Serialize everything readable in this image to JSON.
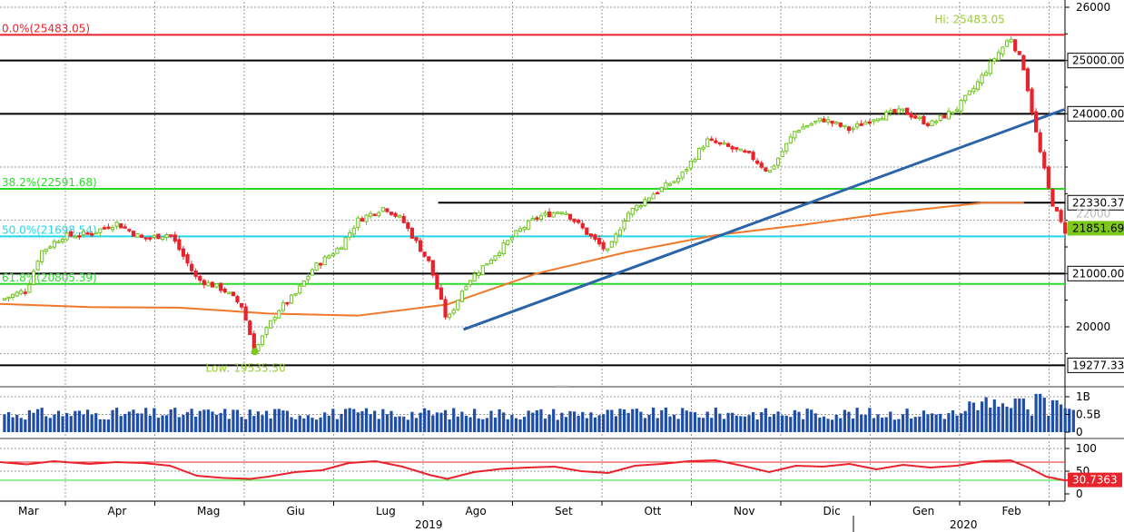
{
  "chart_data": [
    {
      "type": "candlestick",
      "title": "",
      "price_axis": {
        "ticks": [
          "26000",
          "20000"
        ],
        "ylim": [
          18950,
          26150
        ],
        "partial_tick": "22000"
      },
      "levels": [
        {
          "name": "fib-0",
          "value": 25483.05,
          "label": "0.0%(25483.05)",
          "color": "#e8232b",
          "label_side": "left"
        },
        {
          "name": "res-25000",
          "value": 25000,
          "label": "25000.00",
          "color": "#000000",
          "label_side": "right"
        },
        {
          "name": "res-24000",
          "value": 24000,
          "label": "24000.00",
          "color": "#000000",
          "label_side": "right"
        },
        {
          "name": "fib-382",
          "value": 22591.68,
          "label": "38.2%(22591.68)",
          "color": "#2adc2a",
          "label_side": "left"
        },
        {
          "name": "res-22330",
          "value": 22330.37,
          "label": "22330.37",
          "color": "#000000",
          "label_side": "right",
          "x_start_month": 4.9
        },
        {
          "name": "fib-50",
          "value": 21698.54,
          "label": "50.0%(21698.54)",
          "color": "#22d8e8",
          "label_side": "left"
        },
        {
          "name": "sup-21000",
          "value": 21000,
          "label": "21000.00",
          "color": "#000000",
          "label_side": "right"
        },
        {
          "name": "fib-618",
          "value": 20805.39,
          "label": "61.8%(20805.39)",
          "color": "#2adc2a",
          "label_side": "left"
        },
        {
          "name": "sup-19277",
          "value": 19277.33,
          "label": "19277.33",
          "color": "#000000",
          "label_side": "right"
        }
      ],
      "last_price": {
        "value": 21851.69,
        "label": "21851.69",
        "color": "#7ec81e"
      },
      "annotations": [
        {
          "text": "Hi: 25483.05",
          "value": 25483.05
        },
        {
          "text": "Low: 19535.50",
          "value": 19535.5
        }
      ],
      "trendline": {
        "start": [
          5.0,
          19950
        ],
        "end": [
          11.9,
          24080
        ],
        "color": "#2b64a8"
      },
      "moving_average": {
        "color": "#f0782a",
        "points": [
          [
            0,
            20430
          ],
          [
            1,
            20370
          ],
          [
            2,
            20360
          ],
          [
            3,
            20250
          ],
          [
            4,
            20210
          ],
          [
            5,
            20420
          ],
          [
            6,
            21000
          ],
          [
            7,
            21400
          ],
          [
            8,
            21720
          ],
          [
            9,
            21920
          ],
          [
            10,
            22150
          ],
          [
            11,
            22330
          ],
          [
            11.45,
            22330
          ]
        ]
      },
      "close_path": [
        [
          0,
          20500
        ],
        [
          0.3,
          20700
        ],
        [
          0.45,
          21400
        ],
        [
          0.7,
          21700
        ],
        [
          1.0,
          21750
        ],
        [
          1.3,
          21950
        ],
        [
          1.6,
          21650
        ],
        [
          1.9,
          21750
        ],
        [
          2.2,
          20900
        ],
        [
          2.5,
          20700
        ],
        [
          2.7,
          20400
        ],
        [
          2.85,
          19550
        ],
        [
          3.1,
          20300
        ],
        [
          3.3,
          20600
        ],
        [
          3.5,
          21100
        ],
        [
          3.8,
          21500
        ],
        [
          4.0,
          22000
        ],
        [
          4.3,
          22250
        ],
        [
          4.5,
          22000
        ],
        [
          4.8,
          21200
        ],
        [
          5.0,
          20100
        ],
        [
          5.2,
          20800
        ],
        [
          5.5,
          21300
        ],
        [
          5.8,
          21800
        ],
        [
          6.0,
          22050
        ],
        [
          6.3,
          22200
        ],
        [
          6.6,
          21700
        ],
        [
          6.8,
          21400
        ],
        [
          7.0,
          22100
        ],
        [
          7.3,
          22500
        ],
        [
          7.6,
          22800
        ],
        [
          7.9,
          23500
        ],
        [
          8.1,
          23400
        ],
        [
          8.4,
          23200
        ],
        [
          8.6,
          22900
        ],
        [
          8.9,
          23700
        ],
        [
          9.2,
          23900
        ],
        [
          9.5,
          23700
        ],
        [
          9.8,
          23950
        ],
        [
          10.1,
          24050
        ],
        [
          10.4,
          23800
        ],
        [
          10.7,
          24100
        ],
        [
          10.9,
          24500
        ],
        [
          11.1,
          25000
        ],
        [
          11.3,
          25450
        ],
        [
          11.45,
          24850
        ],
        [
          11.6,
          23500
        ],
        [
          11.75,
          22400
        ],
        [
          11.9,
          21800
        ],
        [
          12.05,
          21850
        ]
      ],
      "months": [
        "Mar",
        "Apr",
        "Mag",
        "Giu",
        "Lug",
        "Ago",
        "Set",
        "Ott",
        "Nov",
        "Dic",
        "Gen",
        "Feb"
      ],
      "years": [
        "2019",
        "2020"
      ]
    },
    {
      "type": "bar",
      "name": "volume",
      "ticks": [
        "1B",
        "0.5B",
        "0"
      ],
      "ylim": [
        0,
        1.1
      ],
      "unit": "B",
      "typical": 0.58,
      "spikes": [
        {
          "x": 10.9,
          "v": 0.62
        },
        {
          "x": 11.2,
          "v": 0.72
        },
        {
          "x": 11.4,
          "v": 0.95
        },
        {
          "x": 11.6,
          "v": 1.08
        },
        {
          "x": 11.8,
          "v": 0.9
        }
      ]
    },
    {
      "type": "line",
      "name": "rsi",
      "ticks": [
        "100",
        "50",
        "0"
      ],
      "ylim": [
        -5,
        105
      ],
      "upper": 70,
      "lower": 30,
      "last": {
        "value": 30.7363,
        "label": "30.7363",
        "color": "#e8232b"
      },
      "points": [
        [
          0,
          70
        ],
        [
          0.3,
          65
        ],
        [
          0.6,
          72
        ],
        [
          1.0,
          66
        ],
        [
          1.3,
          70
        ],
        [
          1.6,
          68
        ],
        [
          1.9,
          62
        ],
        [
          2.2,
          40
        ],
        [
          2.5,
          35
        ],
        [
          2.8,
          33
        ],
        [
          3.0,
          38
        ],
        [
          3.3,
          48
        ],
        [
          3.6,
          52
        ],
        [
          3.9,
          68
        ],
        [
          4.2,
          72
        ],
        [
          4.5,
          60
        ],
        [
          4.8,
          42
        ],
        [
          5.0,
          33
        ],
        [
          5.3,
          48
        ],
        [
          5.6,
          55
        ],
        [
          5.9,
          58
        ],
        [
          6.2,
          60
        ],
        [
          6.5,
          50
        ],
        [
          6.8,
          46
        ],
        [
          7.1,
          62
        ],
        [
          7.4,
          66
        ],
        [
          7.7,
          72
        ],
        [
          8.0,
          74
        ],
        [
          8.3,
          62
        ],
        [
          8.6,
          48
        ],
        [
          8.9,
          62
        ],
        [
          9.2,
          60
        ],
        [
          9.5,
          66
        ],
        [
          9.8,
          54
        ],
        [
          10.1,
          64
        ],
        [
          10.4,
          58
        ],
        [
          10.7,
          62
        ],
        [
          11.0,
          72
        ],
        [
          11.3,
          74
        ],
        [
          11.5,
          58
        ],
        [
          11.7,
          38
        ],
        [
          11.9,
          30
        ],
        [
          12.05,
          30.7
        ]
      ]
    }
  ]
}
